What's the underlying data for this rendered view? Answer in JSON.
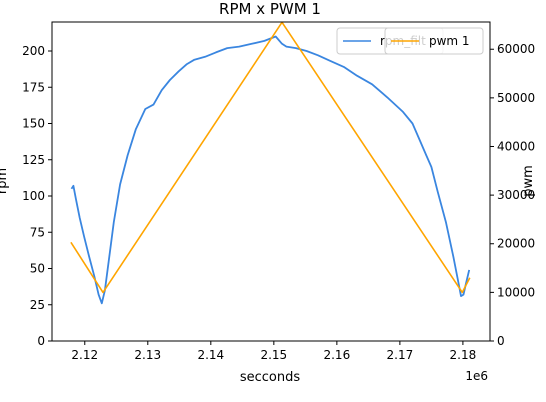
{
  "chart_data": {
    "type": "line",
    "title": "RPM x PWM 1",
    "xlabel": "secconds",
    "x_offset_label": "1e6",
    "x_ticks": [
      "2.12",
      "2.13",
      "2.14",
      "2.15",
      "2.16",
      "2.17",
      "2.18"
    ],
    "x_tick_values": [
      2.12,
      2.13,
      2.14,
      2.15,
      2.16,
      2.17,
      2.18
    ],
    "xlim": [
      2.1148,
      2.1843
    ],
    "left_axis": {
      "label": "rpm",
      "ylim": [
        0,
        220
      ],
      "ticks": [
        "0",
        "25",
        "50",
        "75",
        "100",
        "125",
        "150",
        "175",
        "200"
      ],
      "tick_values": [
        0,
        25,
        50,
        75,
        100,
        125,
        150,
        175,
        200
      ]
    },
    "right_axis": {
      "label": "pwm",
      "ylim": [
        0,
        65600
      ],
      "ticks": [
        "0",
        "10000",
        "20000",
        "30000",
        "40000",
        "50000",
        "60000"
      ],
      "tick_values": [
        0,
        10000,
        20000,
        30000,
        40000,
        50000,
        60000
      ]
    },
    "series": [
      {
        "name": "rpm_filt",
        "axis": "left",
        "color": "#3a86e0",
        "x": [
          2.1179,
          2.1182,
          2.1186,
          2.1192,
          2.1199,
          2.1207,
          2.1215,
          2.1222,
          2.1227,
          2.1232,
          2.1238,
          2.1246,
          2.1256,
          2.1268,
          2.1281,
          2.1296,
          2.1309,
          2.1322,
          2.1335,
          2.1349,
          2.1362,
          2.1374,
          2.1391,
          2.1408,
          2.1426,
          2.1445,
          2.1465,
          2.1485,
          2.1503,
          2.1513,
          2.152,
          2.1535,
          2.1552,
          2.157,
          2.159,
          2.1611,
          2.1632,
          2.1656,
          2.168,
          2.1705,
          2.172,
          2.173,
          2.1742,
          2.175,
          2.176,
          2.1773,
          2.1785,
          2.1793,
          2.1797,
          2.1801,
          2.1805,
          2.181
        ],
        "y": [
          105,
          107,
          98,
          85,
          72,
          58,
          45,
          32,
          26,
          35,
          55,
          82,
          108,
          128,
          146,
          160,
          163,
          173,
          180,
          186,
          191,
          194,
          196,
          199,
          202,
          203,
          205,
          207,
          210,
          205,
          203,
          202,
          200,
          197,
          193,
          189,
          183,
          177,
          168,
          158,
          150,
          140,
          128,
          120,
          103,
          82,
          58,
          40,
          31,
          32,
          40,
          49
        ]
      },
      {
        "name": "pwm 1",
        "axis": "right",
        "color": "#ffa500",
        "x": [
          2.1178,
          2.1229,
          2.1513,
          2.1799,
          2.1811
        ],
        "y": [
          20300,
          10000,
          65535,
          10000,
          13000
        ]
      }
    ],
    "legends": [
      {
        "position": "top-right",
        "entries": [
          "rpm_filt"
        ]
      },
      {
        "position": "top-right",
        "entries": [
          "pwm 1"
        ]
      }
    ],
    "grid": false
  }
}
